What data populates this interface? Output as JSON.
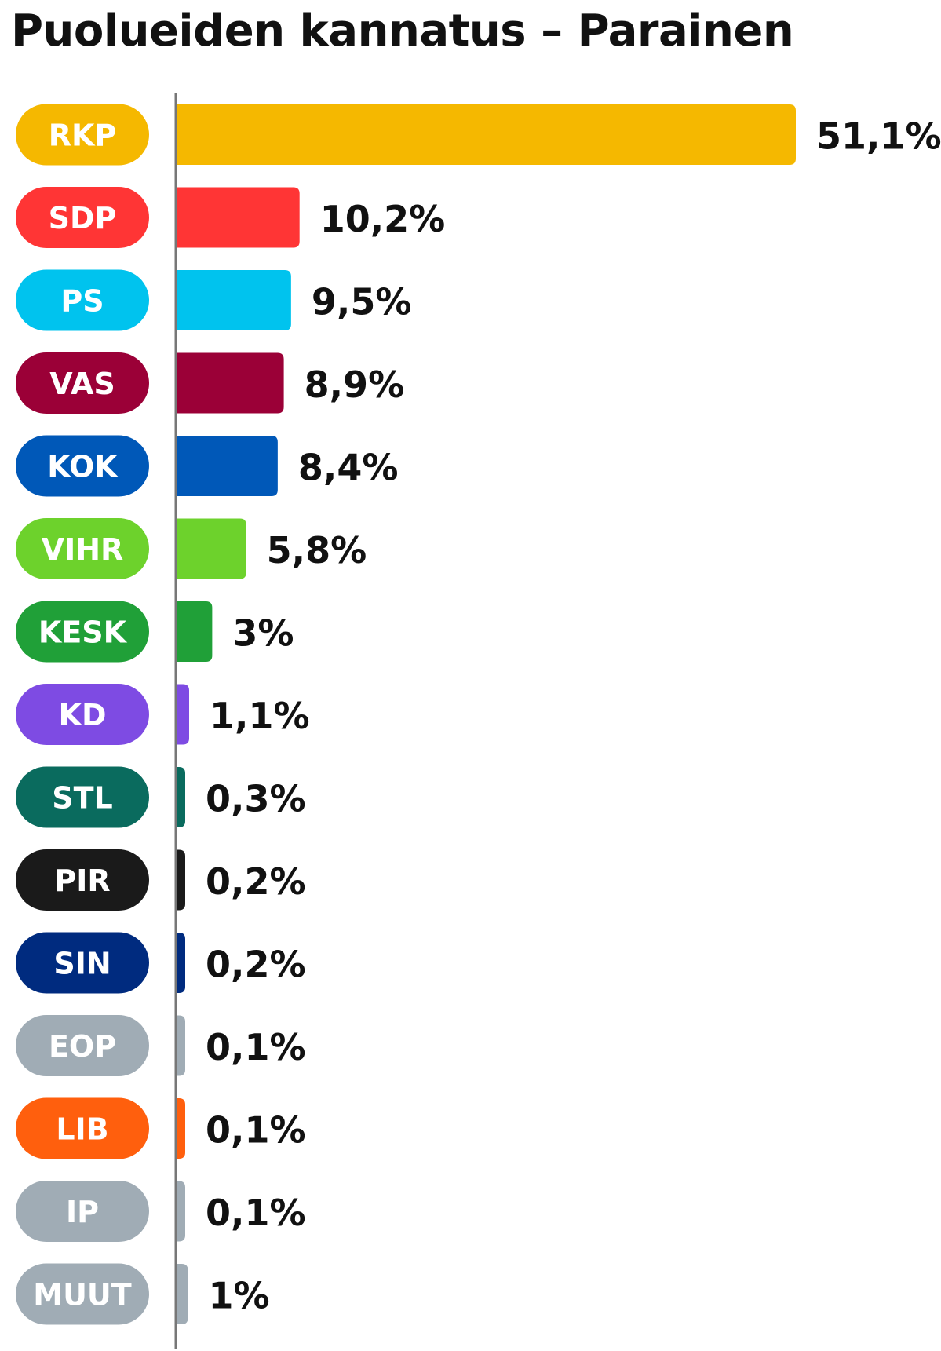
{
  "chart_data": {
    "type": "bar",
    "orientation": "horizontal",
    "title": "Puolueiden kannatus – Parainen",
    "xlabel": "",
    "ylabel": "",
    "xlim": [
      0,
      51.1
    ],
    "grid": false,
    "legend": "none",
    "categories": [
      "RKP",
      "SDP",
      "PS",
      "VAS",
      "KOK",
      "VIHR",
      "KESK",
      "KD",
      "STL",
      "PIR",
      "SIN",
      "EOP",
      "LIB",
      "IP",
      "MUUT"
    ],
    "values": [
      51.1,
      10.2,
      9.5,
      8.9,
      8.4,
      5.8,
      3,
      1.1,
      0.3,
      0.2,
      0.2,
      0.1,
      0.1,
      0.1,
      1
    ],
    "value_labels": [
      "51,1%",
      "10,2%",
      "9,5%",
      "8,9%",
      "8,4%",
      "5,8%",
      "3%",
      "1,1%",
      "0,3%",
      "0,2%",
      "0,2%",
      "0,1%",
      "0,1%",
      "0,1%",
      "1%"
    ],
    "colors": [
      "#F5B800",
      "#FF3535",
      "#00C3EE",
      "#9B0037",
      "#0058B8",
      "#6DD22C",
      "#20A038",
      "#7E4BE3",
      "#0A6B5E",
      "#1A1A1A",
      "#002B7F",
      "#A0ACB5",
      "#FF5F0D",
      "#A0ACB5",
      "#A0ACB5"
    ]
  }
}
